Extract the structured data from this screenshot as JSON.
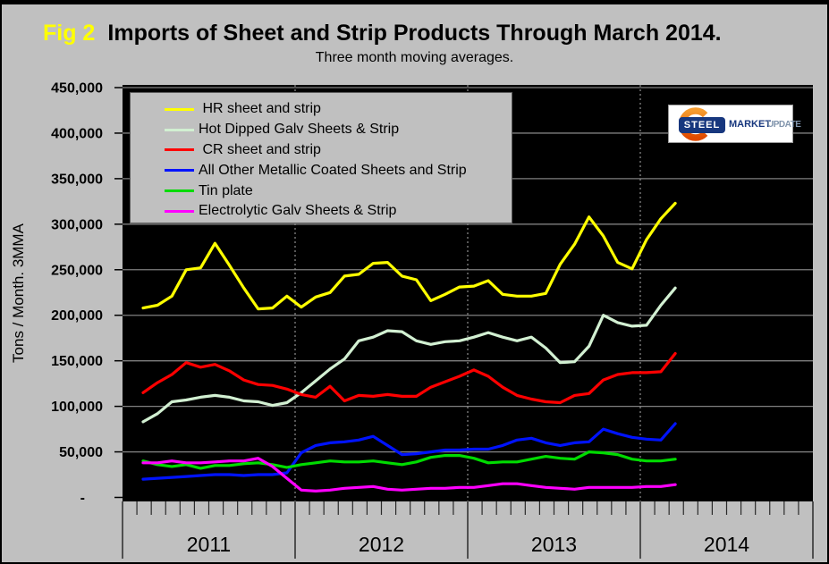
{
  "header": {
    "fig_label": "Fig 2",
    "title": "Imports of Sheet and Strip Products Through March 2014.",
    "subtitle": "Three month moving averages."
  },
  "logo": {
    "word1": "STEEL",
    "word2": "MARKET",
    "word3": "UPDATE"
  },
  "colors": {
    "background": "#C0C0C0",
    "plot_background": "#000000",
    "gridline": "#7F7F7F",
    "axis_text": "#000000",
    "fig_label": "#FFFF00",
    "logo_navy": "#17377E",
    "logo_orange": "#EE7000",
    "logo_update_gray": "#8094AC"
  },
  "chart_data": {
    "type": "line",
    "title": "Imports of Sheet and Strip Products Through March 2014.",
    "subtitle": "Three month moving averages.",
    "ylabel": "Tons / Month. 3MMA",
    "xlabel": "",
    "ylim": [
      0,
      450000
    ],
    "ytick_step": 50000,
    "ytick_labels": [
      "-",
      "50,000",
      "100,000",
      "150,000",
      "200,000",
      "250,000",
      "300,000",
      "350,000",
      "400,000",
      "450,000"
    ],
    "x_year_labels": [
      "2011",
      "2012",
      "2013",
      "2014"
    ],
    "grid": "horizontal solid gray lines every 50,000; dotted vertical gray lines at year boundaries; black plot background",
    "legend_position": "top-left",
    "layout": {
      "months_span": 48,
      "first_month_offset": 1.43
    },
    "months": [
      "Feb-11",
      "Mar-11",
      "Apr-11",
      "May-11",
      "Jun-11",
      "Jul-11",
      "Aug-11",
      "Sep-11",
      "Oct-11",
      "Nov-11",
      "Dec-11",
      "Jan-12",
      "Feb-12",
      "Mar-12",
      "Apr-12",
      "May-12",
      "Jun-12",
      "Jul-12",
      "Aug-12",
      "Sep-12",
      "Oct-12",
      "Nov-12",
      "Dec-12",
      "Jan-13",
      "Feb-13",
      "Mar-13",
      "Apr-13",
      "May-13",
      "Jun-13",
      "Jul-13",
      "Aug-13",
      "Sep-13",
      "Oct-13",
      "Nov-13",
      "Dec-13",
      "Jan-14",
      "Feb-14",
      "Mar-14"
    ],
    "series": [
      {
        "name": "HR sheet and strip",
        "legend_label": " HR sheet and strip",
        "color": "#FFFF00",
        "values": [
          208000,
          211000,
          221000,
          250000,
          252000,
          279000,
          255000,
          230000,
          207000,
          208000,
          221000,
          209000,
          220000,
          225000,
          243000,
          245000,
          257000,
          258000,
          243000,
          239000,
          216000,
          223000,
          231000,
          232000,
          238000,
          223000,
          221000,
          221000,
          224000,
          256000,
          278000,
          308000,
          287000,
          258000,
          251000,
          283000,
          306000,
          323000
        ]
      },
      {
        "name": "Hot Dipped Galv Sheets & Strip",
        "legend_label": "Hot Dipped Galv Sheets & Strip",
        "color": "#D2F0D2",
        "values": [
          83000,
          92000,
          105000,
          107000,
          110000,
          112000,
          110000,
          106000,
          105000,
          101000,
          104000,
          115000,
          128000,
          141000,
          152000,
          172000,
          176000,
          183000,
          182000,
          172000,
          168000,
          171000,
          172000,
          176000,
          181000,
          176000,
          172000,
          176000,
          164000,
          148000,
          149000,
          166000,
          200000,
          192000,
          188000,
          189000,
          211000,
          230000
        ]
      },
      {
        "name": "CR sheet and strip",
        "legend_label": " CR sheet and strip",
        "color": "#FF0000",
        "values": [
          115000,
          126000,
          135000,
          148000,
          143000,
          146000,
          139000,
          129000,
          124000,
          123000,
          119000,
          113000,
          110000,
          122000,
          106000,
          112000,
          111000,
          113000,
          111000,
          111000,
          121000,
          127000,
          133000,
          140000,
          133000,
          121000,
          112000,
          108000,
          105000,
          104000,
          112000,
          114000,
          129000,
          135000,
          137000,
          137000,
          138000,
          158000
        ]
      },
      {
        "name": "All Other Metallic Coated Sheets and Strip",
        "legend_label": "All Other Metallic Coated Sheets and Strip",
        "color": "#0013FF",
        "values": [
          20000,
          21000,
          22000,
          23000,
          24000,
          25000,
          25000,
          24000,
          25000,
          25000,
          27000,
          49000,
          57000,
          60000,
          61000,
          63000,
          67000,
          57000,
          47000,
          48000,
          50000,
          52000,
          52000,
          53000,
          53000,
          57000,
          63000,
          65000,
          60000,
          57000,
          60000,
          61000,
          75000,
          70000,
          66000,
          64000,
          63000,
          81000
        ]
      },
      {
        "name": "Tin plate",
        "legend_label": "Tin plate",
        "color": "#00DB00",
        "values": [
          40000,
          36000,
          34000,
          36000,
          32000,
          35000,
          35000,
          37000,
          38000,
          36000,
          33000,
          36000,
          38000,
          40000,
          39000,
          39000,
          40000,
          38000,
          36000,
          39000,
          44000,
          46000,
          46000,
          43000,
          38000,
          39000,
          39000,
          42000,
          45000,
          43000,
          42000,
          50000,
          49000,
          47000,
          42000,
          40000,
          40000,
          42000
        ]
      },
      {
        "name": "Electrolytic Galv Sheets & Strip",
        "legend_label": "Electrolytic Galv Sheets & Strip",
        "color": "#FF00FF",
        "values": [
          38000,
          38000,
          40000,
          38000,
          38000,
          39000,
          40000,
          40000,
          43000,
          34000,
          21000,
          8000,
          7000,
          8000,
          10000,
          11000,
          12000,
          9000,
          8000,
          9000,
          10000,
          10000,
          11000,
          11000,
          13000,
          15000,
          15000,
          13000,
          11000,
          10000,
          9000,
          11000,
          11000,
          11000,
          11000,
          12000,
          12000,
          14000
        ]
      }
    ]
  }
}
